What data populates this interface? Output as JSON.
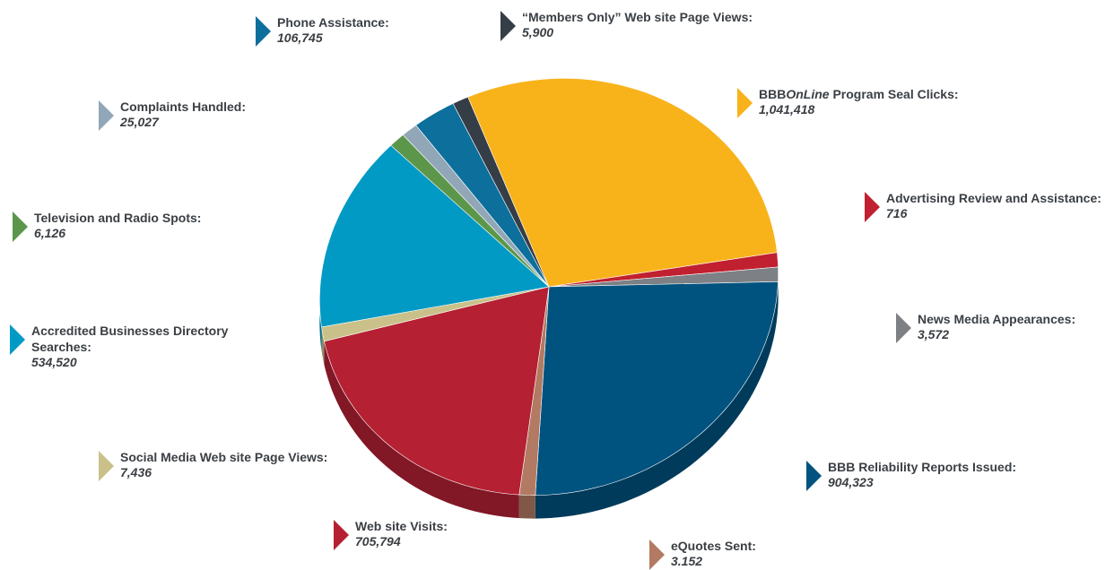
{
  "chart_data": {
    "type": "pie",
    "title": "",
    "slices": [
      {
        "label": "Phone Assistance:",
        "value_text": "106,745",
        "value": 106745,
        "color": "#0c6f9c",
        "id": "phone-assistance"
      },
      {
        "label": "“Members Only” Web site Page Views:",
        "value_text": "5,900",
        "value": 5900,
        "color": "#353d47",
        "id": "members-only"
      },
      {
        "label_prefix": "BBB",
        "label_italic": "OnLine",
        "label_suffix": " Program Seal Clicks:",
        "value_text": "1,041,418",
        "value": 1041418,
        "color": "#f8b31a",
        "id": "bbbonline-seal-clicks"
      },
      {
        "label": "Advertising Review and Assistance:",
        "value_text": "716",
        "value": 716,
        "color": "#c0202f",
        "id": "advertising-review"
      },
      {
        "label": "News Media Appearances:",
        "value_text": "3,572",
        "value": 3572,
        "color": "#7d8084",
        "id": "news-media"
      },
      {
        "label": "BBB Reliability Reports Issued:",
        "value_text": "904,323",
        "value": 904323,
        "color": "#00527f",
        "id": "reliability-reports"
      },
      {
        "label": "eQuotes Sent:",
        "value_text": "3.152",
        "value": 3152,
        "color": "#b27a62",
        "id": "equotes-sent"
      },
      {
        "label": "Web site Visits:",
        "value_text": "705,794",
        "value": 705794,
        "color": "#b52033",
        "id": "website-visits"
      },
      {
        "label": "Social Media Web site Page Views:",
        "value_text": "7,436",
        "value": 7436,
        "color": "#c9c189",
        "id": "social-media"
      },
      {
        "label": "Accredited Businesses Directory Searches:",
        "value_text": "534,520",
        "value": 534520,
        "color": "#009ac4",
        "id": "directory-searches"
      },
      {
        "label": "Television and Radio Spots:",
        "value_text": "6,126",
        "value": 6126,
        "color": "#5c964b",
        "id": "tv-radio-spots"
      },
      {
        "label": "Complaints Handled:",
        "value_text": "25,027",
        "value": 25027,
        "color": "#91a7b7",
        "id": "complaints-handled"
      }
    ]
  }
}
